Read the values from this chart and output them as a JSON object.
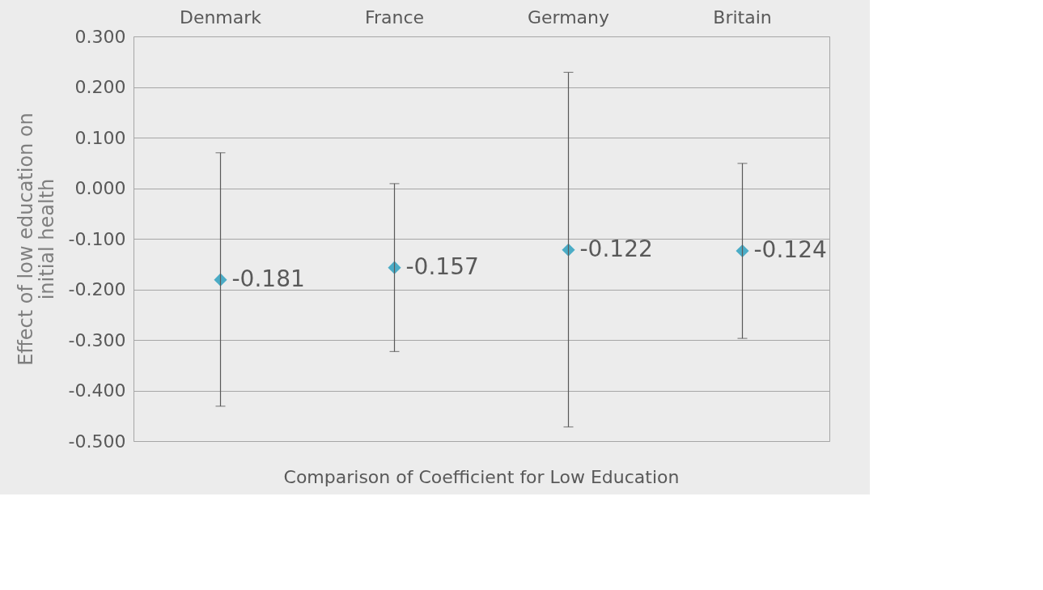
{
  "chart_data": {
    "type": "scatter",
    "xlabel": "Comparison of Coefficient for Low Education",
    "ylabel": "Effect of low education on initial health",
    "categories": [
      "Denmark",
      "France",
      "Germany",
      "Britain"
    ],
    "series": [
      {
        "color": "#4bacc6",
        "values": [
          -0.181,
          -0.157,
          -0.122,
          -0.124
        ],
        "errors": [
          [
            -0.431,
            0.07
          ],
          [
            -0.323,
            0.009
          ],
          [
            -0.472,
            0.229
          ],
          [
            -0.297,
            0.049
          ]
        ]
      }
    ],
    "ylim": [
      -0.5,
      0.3
    ],
    "yticks": [
      {
        "value": 0.3,
        "label": "0.300"
      },
      {
        "value": 0.2,
        "label": "0.200"
      },
      {
        "value": 0.1,
        "label": "0.100"
      },
      {
        "value": 0,
        "label": "0.000"
      },
      {
        "value": -0.1,
        "label": "-0.100"
      },
      {
        "value": -0.2,
        "label": "-0.200"
      },
      {
        "value": -0.3,
        "label": "-0.300"
      },
      {
        "value": -0.4,
        "label": "-0.400"
      },
      {
        "value": -0.5,
        "label": "-0.500"
      }
    ],
    "marker": "diamond",
    "grid": "y",
    "data_labels": true
  }
}
